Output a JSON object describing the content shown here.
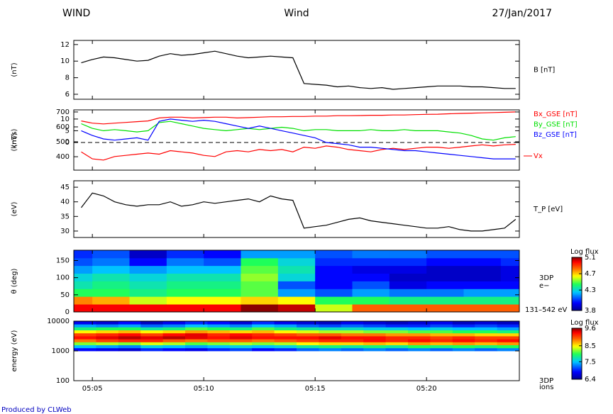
{
  "header": {
    "left": "WIND",
    "center": "Wind",
    "right": "27/Jan/2017"
  },
  "footer": "Produced by CLWeb",
  "chart_data": {
    "type": "multi-panel",
    "x": [
      "05:04:30",
      "05:05:00",
      "05:05:30",
      "05:06:00",
      "05:06:30",
      "05:07:00",
      "05:07:30",
      "05:08:00",
      "05:08:30",
      "05:09:00",
      "05:09:30",
      "05:10:00",
      "05:10:30",
      "05:11:00",
      "05:11:30",
      "05:12:00",
      "05:12:30",
      "05:13:00",
      "05:13:30",
      "05:14:00",
      "05:14:30",
      "05:15:00",
      "05:15:30",
      "05:16:00",
      "05:16:30",
      "05:17:00",
      "05:17:30",
      "05:18:00",
      "05:18:30",
      "05:19:00",
      "05:19:30",
      "05:20:00",
      "05:20:30",
      "05:21:00",
      "05:21:30",
      "05:22:00",
      "05:22:30",
      "05:23:00",
      "05:23:30",
      "05:24:00"
    ],
    "xlim": [
      "05:04:10",
      "05:24:10"
    ],
    "xticks": [
      "05:05",
      "05:10",
      "05:15",
      "05:20"
    ],
    "panels": [
      {
        "type": "line",
        "ylabel": "(nT)",
        "ylim": [
          5.4,
          12.5
        ],
        "yticks": [
          6,
          8,
          10,
          12
        ],
        "series": [
          {
            "name": "B [nT]",
            "color": "#000000",
            "values": [
              9.8,
              10.2,
              10.5,
              10.4,
              10.2,
              10.0,
              10.1,
              10.6,
              10.9,
              10.7,
              10.8,
              11.0,
              11.2,
              10.9,
              10.6,
              10.4,
              10.5,
              10.6,
              10.5,
              10.4,
              7.3,
              7.2,
              7.1,
              6.9,
              7.0,
              6.8,
              6.7,
              6.8,
              6.6,
              6.7,
              6.8,
              6.9,
              7.0,
              7.0,
              7.0,
              6.9,
              6.9,
              6.8,
              6.7,
              6.7
            ]
          }
        ]
      },
      {
        "type": "line",
        "ylabel": "(nT)",
        "y2label": "(km/s)",
        "ylim": [
          -11.8,
          13.9
        ],
        "yticks": [
          0,
          5,
          10
        ],
        "y2lim": [
          310,
          714
        ],
        "y2ticks": [
          400,
          500,
          600,
          700
        ],
        "zero_line": true,
        "series": [
          {
            "name": "Bx_GSE [nT]",
            "color": "#ff0000",
            "values": [
              -4,
              -7,
              -7.5,
              -6,
              -5.5,
              -5,
              -4.5,
              -5,
              -3.5,
              -4,
              -4.5,
              -5.5,
              -6,
              -4,
              -3.5,
              -4,
              -3,
              -3.5,
              -3,
              -4,
              -2,
              -2.5,
              -1.5,
              -2,
              -3,
              -3.5,
              -4,
              -3,
              -2.5,
              -3,
              -2.5,
              -2,
              -2,
              -2.5,
              -2,
              -1.5,
              -1,
              -1.5,
              -1,
              -0.8
            ]
          },
          {
            "name": "By_GSE [nT]",
            "color": "#00e000",
            "values": [
              8,
              6,
              5,
              5.5,
              5,
              4.5,
              5,
              8.5,
              9,
              8,
              7,
              6,
              5.5,
              5,
              5.5,
              6,
              5.5,
              6,
              6.5,
              6,
              5,
              5.5,
              5.5,
              5,
              5,
              5,
              5.5,
              5,
              5,
              5.5,
              5,
              5,
              5,
              4.5,
              4,
              3,
              1.5,
              1,
              2,
              2.5
            ]
          },
          {
            "name": "Bz_GSE [nT]",
            "color": "#0000ff",
            "values": [
              5,
              3,
              1.5,
              1,
              1.5,
              2,
              1,
              9,
              10,
              9.5,
              9,
              9.5,
              9,
              8,
              7,
              6,
              7,
              6,
              5,
              4,
              3,
              2,
              0,
              -0.5,
              -1,
              -2,
              -2,
              -2.5,
              -3,
              -3.5,
              -3.5,
              -4,
              -4.5,
              -5,
              -5.5,
              -6,
              -6.5,
              -7,
              -7,
              -7
            ]
          },
          {
            "name": "Vx",
            "color": "#ff0000",
            "axis": "y2",
            "values": [
              640,
              625,
              620,
              625,
              630,
              635,
              640,
              660,
              665,
              665,
              660,
              662,
              665,
              665,
              660,
              662,
              665,
              668,
              668,
              670,
              670,
              672,
              672,
              675,
              675,
              676,
              678,
              678,
              680,
              680,
              682,
              684,
              685,
              688,
              690,
              692,
              694,
              696,
              698,
              700
            ]
          }
        ]
      },
      {
        "type": "line",
        "ylabel": "(eV)",
        "ylim": [
          27.8,
          47.2
        ],
        "yticks": [
          30,
          35,
          40,
          45
        ],
        "series": [
          {
            "name": "T_P [eV]",
            "color": "#000000",
            "values": [
              38,
              43,
              42,
              40,
              39,
              38.5,
              39,
              39,
              40,
              38.5,
              39,
              40,
              39.5,
              40,
              40.5,
              41,
              40,
              42,
              41,
              40.5,
              31,
              31.5,
              32,
              33,
              34,
              34.5,
              33.5,
              33,
              32.5,
              32,
              31.5,
              31,
              31,
              31.5,
              30.5,
              30,
              30,
              30.5,
              31,
              34
            ]
          }
        ]
      },
      {
        "type": "heatmap",
        "ylabel": "θ (deg)",
        "ylim": [
          0,
          180
        ],
        "yticks": [
          0,
          50,
          100,
          150
        ],
        "x_edges": [
          "05:04:10",
          "05:05:00",
          "05:06:40",
          "05:08:20",
          "05:10:00",
          "05:11:40",
          "05:13:20",
          "05:15:00",
          "05:16:40",
          "05:18:20",
          "05:20:00",
          "05:21:40",
          "05:23:20",
          "05:24:10"
        ],
        "y_edges": [
          0,
          22.5,
          45,
          67.5,
          90,
          112.5,
          135,
          157.5,
          180
        ],
        "values": [
          [
            5.0,
            4.8,
            4.45,
            4.35,
            4.3,
            4.2,
            4.1,
            4.05
          ],
          [
            5.0,
            4.75,
            4.45,
            4.4,
            4.35,
            4.25,
            4.15,
            4.1
          ],
          [
            5.0,
            4.6,
            4.4,
            4.35,
            4.3,
            4.2,
            4.0,
            3.9
          ],
          [
            5.0,
            4.65,
            4.45,
            4.4,
            4.35,
            4.25,
            4.15,
            4.05
          ],
          [
            5.0,
            4.65,
            4.45,
            4.4,
            4.35,
            4.25,
            4.1,
            4.0
          ],
          [
            5.1,
            4.7,
            4.5,
            4.5,
            4.55,
            4.5,
            4.45,
            4.2
          ],
          [
            5.05,
            4.65,
            4.2,
            4.1,
            4.3,
            4.35,
            4.3,
            4.2
          ],
          [
            4.6,
            4.45,
            4.1,
            4.0,
            4.0,
            4.0,
            4.05,
            4.1
          ],
          [
            4.85,
            4.45,
            4.2,
            4.1,
            4.0,
            3.95,
            4.05,
            4.15
          ],
          [
            4.85,
            4.4,
            4.15,
            3.95,
            3.9,
            3.95,
            4.05,
            4.15
          ],
          [
            4.85,
            4.4,
            4.15,
            4.0,
            3.9,
            3.9,
            4.0,
            4.1
          ],
          [
            4.85,
            4.4,
            4.2,
            4.0,
            3.9,
            3.9,
            4.0,
            4.1
          ],
          [
            4.85,
            4.4,
            4.2,
            4.0,
            3.95,
            3.95,
            4.05,
            4.1
          ]
        ],
        "colorbar": {
          "title": "Log flux",
          "lim": [
            3.8,
            5.1
          ],
          "ticks": [
            3.8,
            4.3,
            4.7,
            5.1
          ]
        },
        "labels": [
          "3DP",
          "e−",
          "131–542 eV"
        ]
      },
      {
        "type": "heatmap",
        "ylabel": "energy (eV)",
        "log_y": true,
        "ylim": [
          100,
          10000
        ],
        "yticks": [
          100,
          1000,
          10000
        ],
        "x_edges": [
          "05:04:10",
          "05:05:10",
          "05:06:10",
          "05:07:10",
          "05:08:10",
          "05:09:10",
          "05:10:10",
          "05:11:10",
          "05:12:10",
          "05:13:10",
          "05:14:10",
          "05:15:10",
          "05:16:10",
          "05:17:10",
          "05:18:10",
          "05:19:10",
          "05:20:10",
          "05:21:10",
          "05:22:10",
          "05:23:10",
          "05:24:10"
        ],
        "y_edges": [
          1000,
          1259,
          1585,
          1995,
          2512,
          3162,
          3981,
          5012,
          6310,
          7943,
          10000
        ],
        "values": [
          [
            6.9,
            7.5,
            8.2,
            8.9,
            9.3,
            9.1,
            8.5,
            7.9,
            7.4,
            6.8
          ],
          [
            6.8,
            7.4,
            8.3,
            9.1,
            9.4,
            9.2,
            8.6,
            8.0,
            7.3,
            6.7
          ],
          [
            6.7,
            7.3,
            8.2,
            9.2,
            9.5,
            9.3,
            8.7,
            8.0,
            7.4,
            6.9
          ],
          [
            7.0,
            7.6,
            8.4,
            9.2,
            9.4,
            9.1,
            8.5,
            7.8,
            7.2,
            6.6
          ],
          [
            6.9,
            7.5,
            8.3,
            9.0,
            9.5,
            9.3,
            8.6,
            7.9,
            7.3,
            6.8
          ],
          [
            6.8,
            7.4,
            8.1,
            8.9,
            9.4,
            9.4,
            8.8,
            8.1,
            7.5,
            7.0
          ],
          [
            7.0,
            7.5,
            8.2,
            9.0,
            9.3,
            9.2,
            8.7,
            8.0,
            7.4,
            6.9
          ],
          [
            7.1,
            7.6,
            8.3,
            9.0,
            9.4,
            9.3,
            8.6,
            7.9,
            7.3,
            6.7
          ],
          [
            6.9,
            7.5,
            8.2,
            8.9,
            9.3,
            9.2,
            8.7,
            8.1,
            7.5,
            7.0
          ],
          [
            7.0,
            7.6,
            8.3,
            9.0,
            9.3,
            9.1,
            8.5,
            7.9,
            7.4,
            6.8
          ],
          [
            7.2,
            7.8,
            8.5,
            9.1,
            9.3,
            9.0,
            8.4,
            7.8,
            7.2,
            6.7
          ],
          [
            7.3,
            7.9,
            8.6,
            9.2,
            9.4,
            9.0,
            8.3,
            7.7,
            7.1,
            6.6
          ],
          [
            7.2,
            7.8,
            8.6,
            9.2,
            9.3,
            8.9,
            8.3,
            7.7,
            7.2,
            6.8
          ],
          [
            7.3,
            7.9,
            8.7,
            9.3,
            9.3,
            8.9,
            8.2,
            7.6,
            7.1,
            6.7
          ],
          [
            7.2,
            7.8,
            8.6,
            9.2,
            9.2,
            8.8,
            8.2,
            7.6,
            7.0,
            6.6
          ],
          [
            7.3,
            8.0,
            8.8,
            9.3,
            9.2,
            8.8,
            8.1,
            7.5,
            7.0,
            6.7
          ],
          [
            7.2,
            7.9,
            8.7,
            9.2,
            9.1,
            8.7,
            8.1,
            7.6,
            7.1,
            6.8
          ],
          [
            7.3,
            8.0,
            8.8,
            9.3,
            9.2,
            8.7,
            8.0,
            7.5,
            7.0,
            6.6
          ],
          [
            7.2,
            7.9,
            8.7,
            9.2,
            9.1,
            8.6,
            8.0,
            7.5,
            7.1,
            6.7
          ],
          [
            7.3,
            8.0,
            8.8,
            9.3,
            9.1,
            8.6,
            7.9,
            7.4,
            7.0,
            6.6
          ]
        ],
        "colorbar": {
          "title": "Log flux",
          "lim": [
            6.4,
            9.6
          ],
          "ticks": [
            6.4,
            7.5,
            8.5,
            9.6
          ]
        },
        "labels": [
          "3DP",
          "ions"
        ]
      }
    ]
  }
}
